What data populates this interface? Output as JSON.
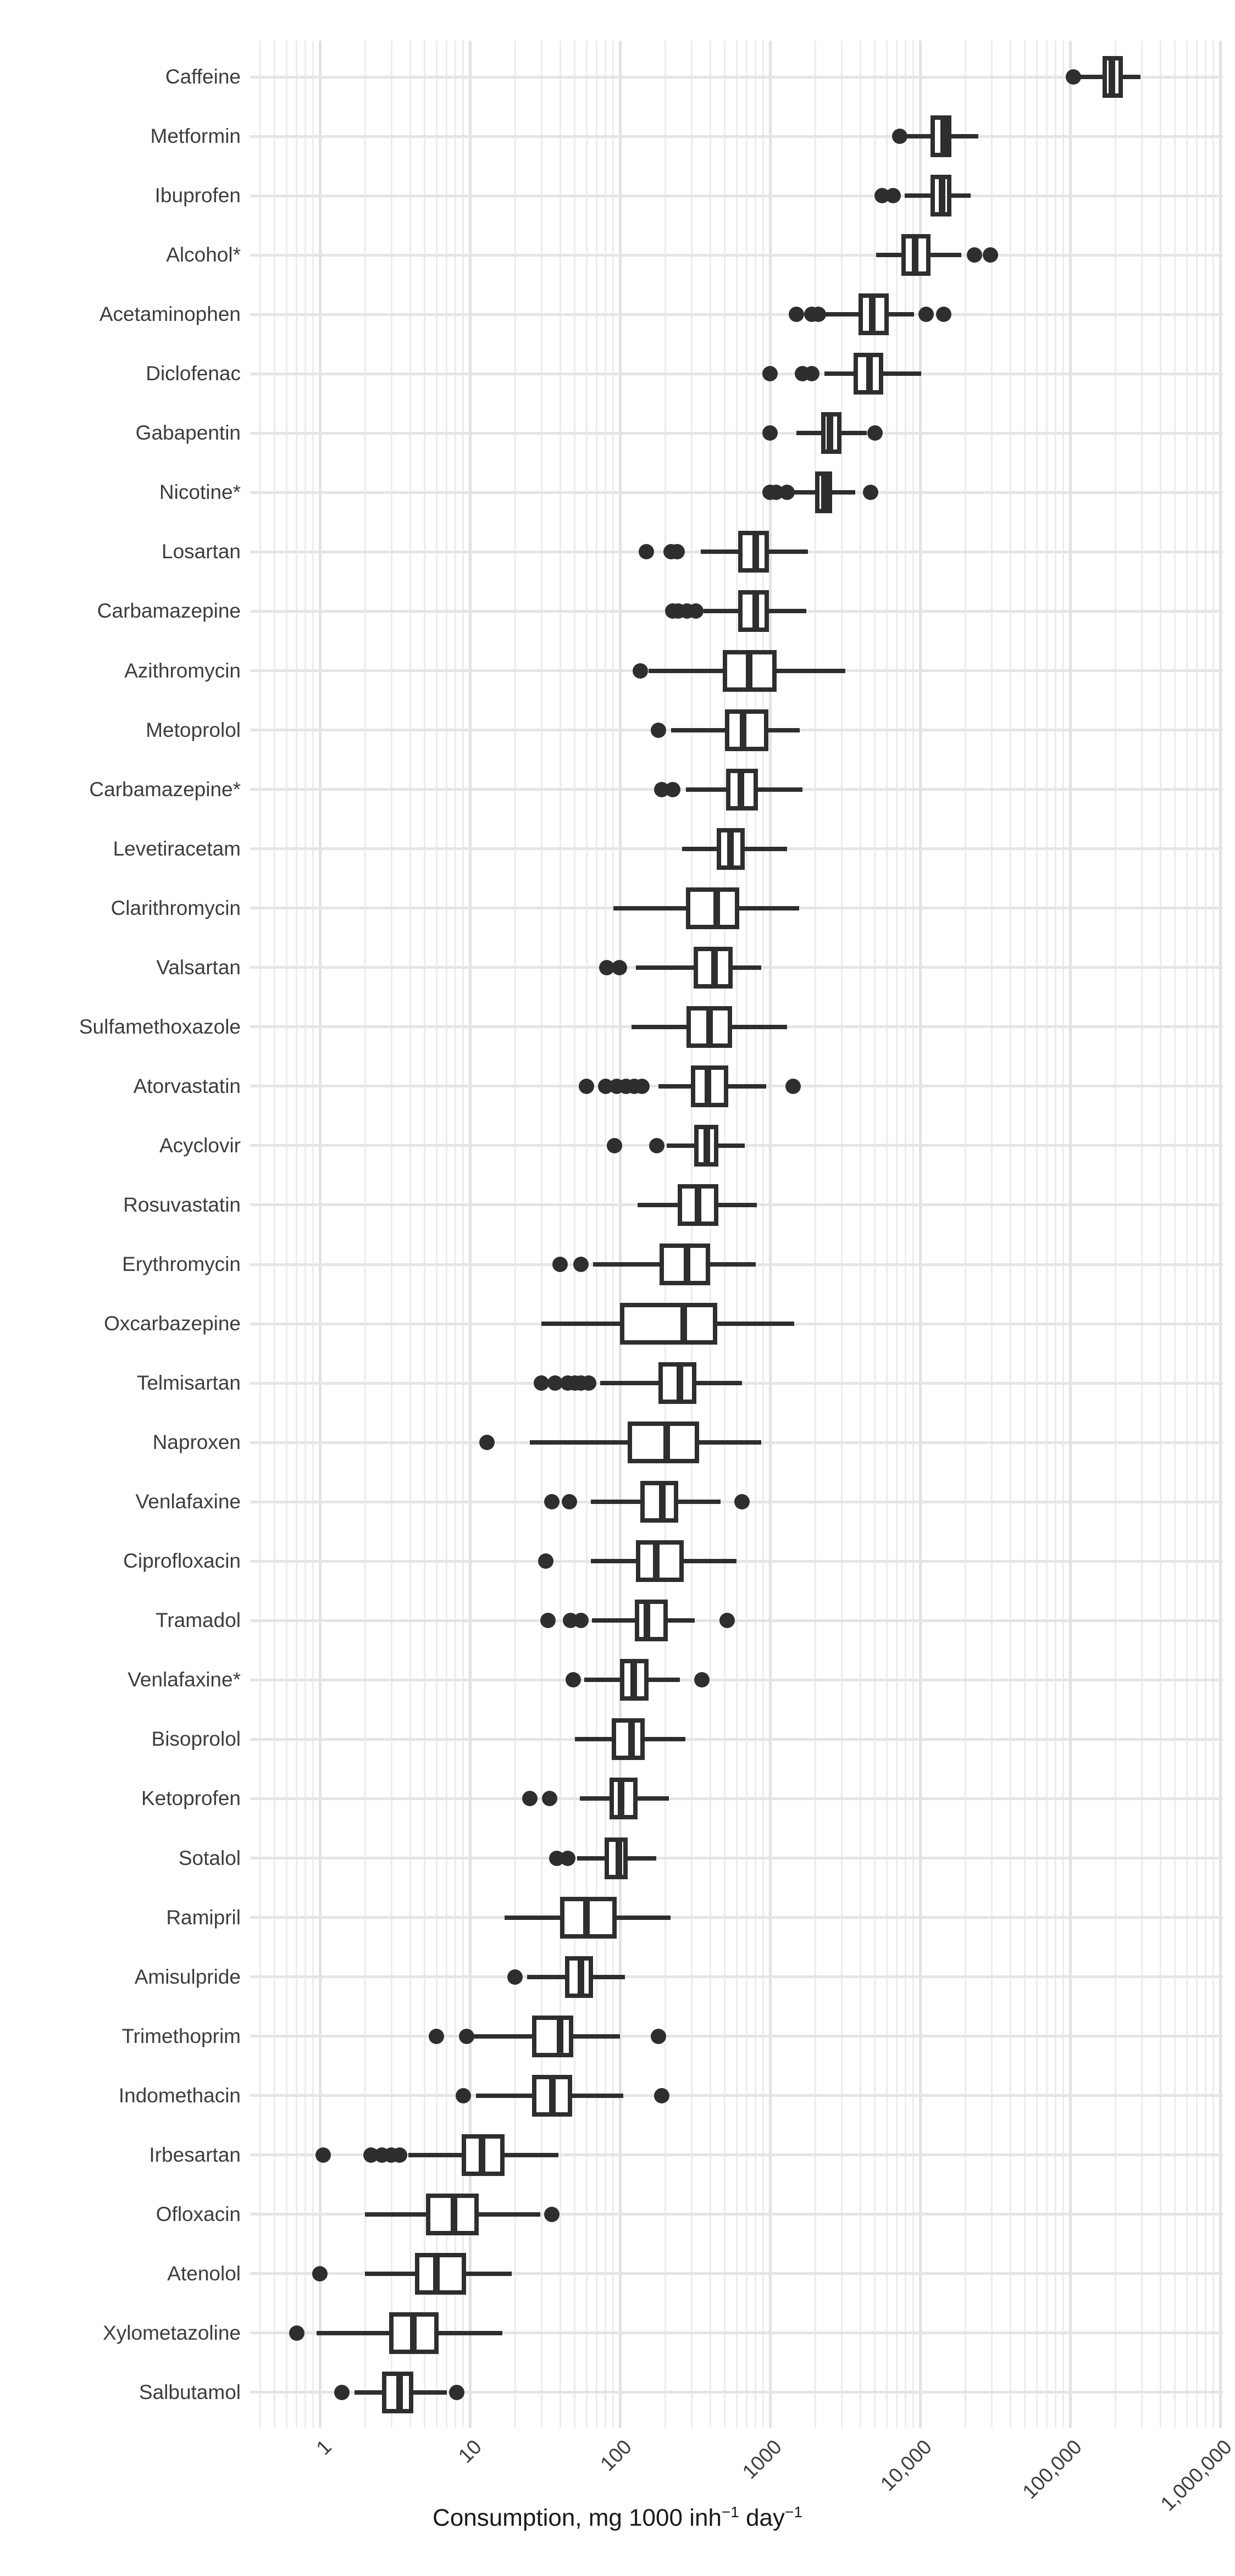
{
  "colors": {
    "box_stroke": "#2e2e2e",
    "box_fill": "#ffffff",
    "grid_major": "#e2e2e2",
    "grid_minor": "#ececec",
    "row_line": "#e5e5e5",
    "label_text": "#3d3d3d",
    "background": "#ffffff"
  },
  "chart_data": {
    "type": "boxplot",
    "orientation": "horizontal",
    "title": "",
    "xlabel": "Consumption, mg 1000 inh⁻¹ day⁻¹",
    "xlabel_parts": {
      "prefix": "Consumption, mg 1000 inh",
      "sup1": "−1",
      "mid": " day",
      "sup2": "−1"
    },
    "x_scale": "log10",
    "grid": true,
    "legend": "none",
    "x_ticks": [
      "1",
      "10",
      "100",
      "1000",
      "10,000",
      "100,000",
      "1,000,000"
    ],
    "x_tick_values": [
      1,
      10,
      100,
      1000,
      10000,
      100000,
      1000000
    ],
    "x_range_values": [
      0.34,
      1040000
    ],
    "categories": [
      "Caffeine",
      "Metformin",
      "Ibuprofen",
      "Alcohol*",
      "Acetaminophen",
      "Diclofenac",
      "Gabapentin",
      "Nicotine*",
      "Losartan",
      "Carbamazepine",
      "Azithromycin",
      "Metoprolol",
      "Carbamazepine*",
      "Levetiracetam",
      "Clarithromycin",
      "Valsartan",
      "Sulfamethoxazole",
      "Atorvastatin",
      "Acyclovir",
      "Rosuvastatin",
      "Erythromycin",
      "Oxcarbazepine",
      "Telmisartan",
      "Naproxen",
      "Venlafaxine",
      "Ciprofloxacin",
      "Tramadol",
      "Venlafaxine*",
      "Bisoprolol",
      "Ketoprofen",
      "Sotalol",
      "Ramipril",
      "Amisulpride",
      "Trimethoprim",
      "Indomethacin",
      "Irbesartan",
      "Ofloxacin",
      "Atenolol",
      "Xylometazoline",
      "Salbutamol"
    ],
    "series": [
      {
        "name": "Caffeine",
        "lo": 115000,
        "q1": 165000,
        "med": 190000,
        "q3": 225000,
        "hi": 295000,
        "out_lo": [
          105000
        ],
        "out_hi": []
      },
      {
        "name": "Metformin",
        "lo": 8000,
        "q1": 11700,
        "med": 14400,
        "q3": 16200,
        "hi": 24500,
        "out_lo": [
          7300
        ],
        "out_hi": []
      },
      {
        "name": "Ibuprofen",
        "lo": 7900,
        "q1": 11700,
        "med": 14000,
        "q3": 16200,
        "hi": 21700,
        "out_lo": [
          5600,
          6600
        ],
        "out_hi": []
      },
      {
        "name": "Alcohol*",
        "lo": 5100,
        "q1": 7500,
        "med": 9300,
        "q3": 11700,
        "hi": 18800,
        "out_lo": [],
        "out_hi": [
          23000,
          29500
        ]
      },
      {
        "name": "Acetaminophen",
        "lo": 2350,
        "q1": 3900,
        "med": 4800,
        "q3": 6200,
        "hi": 9100,
        "out_lo": [
          1500,
          1900,
          2100
        ],
        "out_hi": [
          11000,
          14400
        ]
      },
      {
        "name": "Diclofenac",
        "lo": 2300,
        "q1": 3600,
        "med": 4600,
        "q3": 5700,
        "hi": 10200,
        "out_lo": [
          1000,
          1650,
          1900
        ],
        "out_hi": []
      },
      {
        "name": "Gabapentin",
        "lo": 1500,
        "q1": 2200,
        "med": 2500,
        "q3": 3000,
        "hi": 4400,
        "out_lo": [
          1000
        ],
        "out_hi": [
          5000
        ]
      },
      {
        "name": "Nicotine*",
        "lo": 1450,
        "q1": 2000,
        "med": 2300,
        "q3": 2600,
        "hi": 3700,
        "out_lo": [
          1000,
          1100,
          1300
        ],
        "out_hi": [
          4700
        ]
      },
      {
        "name": "Losartan",
        "lo": 345,
        "q1": 615,
        "med": 800,
        "q3": 980,
        "hi": 1790,
        "out_lo": [
          150,
          220,
          240
        ],
        "out_hi": []
      },
      {
        "name": "Carbamazepine",
        "lo": 360,
        "q1": 615,
        "med": 800,
        "q3": 980,
        "hi": 1750,
        "out_lo": [
          225,
          245,
          280,
          320
        ],
        "out_hi": []
      },
      {
        "name": "Azithromycin",
        "lo": 155,
        "q1": 485,
        "med": 725,
        "q3": 1110,
        "hi": 3180,
        "out_lo": [
          137
        ],
        "out_hi": []
      },
      {
        "name": "Metoprolol",
        "lo": 220,
        "q1": 500,
        "med": 660,
        "q3": 975,
        "hi": 1575,
        "out_lo": [
          180
        ],
        "out_hi": []
      },
      {
        "name": "Carbamazepine*",
        "lo": 275,
        "q1": 510,
        "med": 640,
        "q3": 830,
        "hi": 1640,
        "out_lo": [
          190,
          225
        ],
        "out_hi": []
      },
      {
        "name": "Levetiracetam",
        "lo": 260,
        "q1": 440,
        "med": 545,
        "q3": 680,
        "hi": 1300,
        "out_lo": [],
        "out_hi": []
      },
      {
        "name": "Clarithromycin",
        "lo": 90,
        "q1": 275,
        "med": 440,
        "q3": 625,
        "hi": 1560,
        "out_lo": [],
        "out_hi": []
      },
      {
        "name": "Valsartan",
        "lo": 128,
        "q1": 310,
        "med": 425,
        "q3": 565,
        "hi": 875,
        "out_lo": [
          82,
          99
        ],
        "out_hi": []
      },
      {
        "name": "Sulfamethoxazole",
        "lo": 119,
        "q1": 278,
        "med": 395,
        "q3": 560,
        "hi": 1295,
        "out_lo": [],
        "out_hi": []
      },
      {
        "name": "Atorvastatin",
        "lo": 180,
        "q1": 296,
        "med": 385,
        "q3": 525,
        "hi": 940,
        "out_lo": [
          60,
          80,
          95,
          110,
          125,
          140
        ],
        "out_hi": [
          1420
        ]
      },
      {
        "name": "Acyclovir",
        "lo": 205,
        "q1": 313,
        "med": 378,
        "q3": 452,
        "hi": 680,
        "out_lo": [
          92,
          176
        ],
        "out_hi": []
      },
      {
        "name": "Rosuvastatin",
        "lo": 131,
        "q1": 243,
        "med": 330,
        "q3": 452,
        "hi": 815,
        "out_lo": [],
        "out_hi": []
      },
      {
        "name": "Erythromycin",
        "lo": 66,
        "q1": 183,
        "med": 280,
        "q3": 400,
        "hi": 805,
        "out_lo": [
          40,
          55
        ],
        "out_hi": []
      },
      {
        "name": "Oxcarbazepine",
        "lo": 30,
        "q1": 100,
        "med": 265,
        "q3": 445,
        "hi": 1450,
        "out_lo": [],
        "out_hi": []
      },
      {
        "name": "Telmisartan",
        "lo": 74,
        "q1": 181,
        "med": 250,
        "q3": 322,
        "hi": 650,
        "out_lo": [
          30,
          37,
          45,
          50,
          55,
          62
        ],
        "out_hi": []
      },
      {
        "name": "Naproxen",
        "lo": 25,
        "q1": 113,
        "med": 205,
        "q3": 336,
        "hi": 875,
        "out_lo": [
          13
        ],
        "out_hi": []
      },
      {
        "name": "Venlafaxine",
        "lo": 64,
        "q1": 137,
        "med": 191,
        "q3": 245,
        "hi": 470,
        "out_lo": [
          35,
          46
        ],
        "out_hi": [
          650
        ]
      },
      {
        "name": "Ciprofloxacin",
        "lo": 64,
        "q1": 128,
        "med": 174,
        "q3": 266,
        "hi": 600,
        "out_lo": [
          32
        ],
        "out_hi": []
      },
      {
        "name": "Tramadol",
        "lo": 65,
        "q1": 126,
        "med": 151,
        "q3": 209,
        "hi": 315,
        "out_lo": [
          33,
          47,
          55
        ],
        "out_hi": [
          520
        ]
      },
      {
        "name": "Venlafaxine*",
        "lo": 58,
        "q1": 100,
        "med": 123,
        "q3": 155,
        "hi": 250,
        "out_lo": [
          49
        ],
        "out_hi": [
          350
        ]
      },
      {
        "name": "Bisoprolol",
        "lo": 50,
        "q1": 88,
        "med": 119,
        "q3": 146,
        "hi": 273,
        "out_lo": [],
        "out_hi": []
      },
      {
        "name": "Ketoprofen",
        "lo": 54,
        "q1": 85,
        "med": 102,
        "q3": 131,
        "hi": 212,
        "out_lo": [
          25,
          34
        ],
        "out_hi": []
      },
      {
        "name": "Sotalol",
        "lo": 52,
        "q1": 79,
        "med": 98,
        "q3": 113,
        "hi": 174,
        "out_lo": [
          38,
          45
        ],
        "out_hi": []
      },
      {
        "name": "Ramipril",
        "lo": 17,
        "q1": 40,
        "med": 60,
        "q3": 95,
        "hi": 218,
        "out_lo": [],
        "out_hi": []
      },
      {
        "name": "Amisulpride",
        "lo": 24,
        "q1": 43,
        "med": 55,
        "q3": 66,
        "hi": 108,
        "out_lo": [
          20
        ],
        "out_hi": []
      },
      {
        "name": "Trimethoprim",
        "lo": 10.5,
        "q1": 26,
        "med": 40,
        "q3": 49,
        "hi": 100,
        "out_lo": [
          6,
          9.5
        ],
        "out_hi": [
          180
        ]
      },
      {
        "name": "Indomethacin",
        "lo": 11,
        "q1": 26,
        "med": 35.5,
        "q3": 48,
        "hi": 105,
        "out_lo": [
          9
        ],
        "out_hi": [
          190
        ]
      },
      {
        "name": "Irbesartan",
        "lo": 3.9,
        "q1": 8.8,
        "med": 12,
        "q3": 17,
        "hi": 39,
        "out_lo": [
          1.05,
          2.2,
          2.6,
          3.0,
          3.4
        ],
        "out_hi": []
      },
      {
        "name": "Ofloxacin",
        "lo": 2.0,
        "q1": 5.1,
        "med": 7.8,
        "q3": 11.4,
        "hi": 29.5,
        "out_lo": [],
        "out_hi": [
          35
        ]
      },
      {
        "name": "Atenolol",
        "lo": 2.0,
        "q1": 4.3,
        "med": 6.0,
        "q3": 9.4,
        "hi": 19,
        "out_lo": [
          1.0
        ],
        "out_hi": []
      },
      {
        "name": "Xylometazoline",
        "lo": 0.95,
        "q1": 2.9,
        "med": 4.2,
        "q3": 6.2,
        "hi": 16.5,
        "out_lo": [
          0.7
        ],
        "out_hi": []
      },
      {
        "name": "Salbutamol",
        "lo": 1.7,
        "q1": 2.6,
        "med": 3.4,
        "q3": 4.2,
        "hi": 7.0,
        "out_lo": [
          1.4
        ],
        "out_hi": [
          8.2
        ]
      }
    ]
  }
}
